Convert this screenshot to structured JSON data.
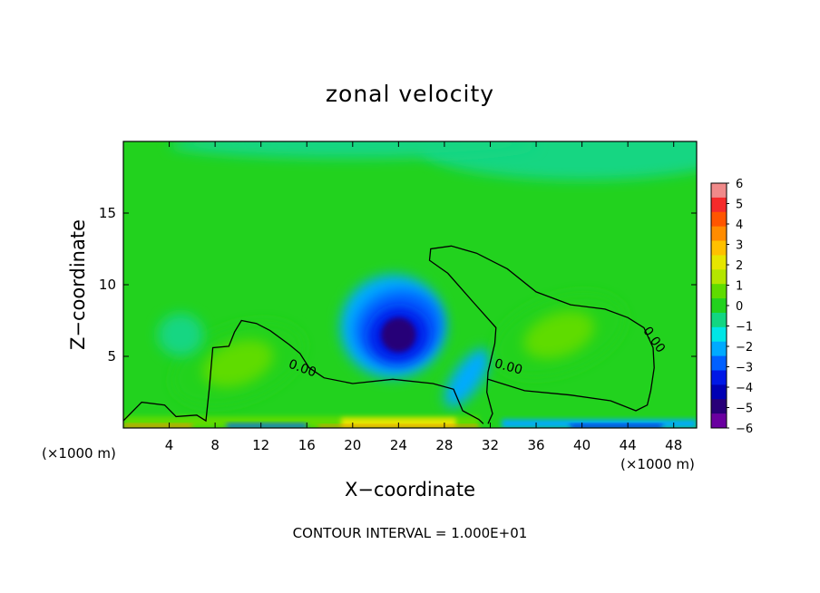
{
  "chart_data": {
    "type": "heatmap",
    "title": "zonal velocity",
    "xlabel": "X−coordinate",
    "ylabel": "Z−coordinate",
    "x_unit_left": "(×1000 m)",
    "x_unit_right": "(×1000 m)",
    "xlim": [
      0,
      50
    ],
    "ylim": [
      0,
      20
    ],
    "x_ticks": [
      4,
      8,
      12,
      16,
      20,
      24,
      28,
      32,
      36,
      40,
      44,
      48
    ],
    "y_ticks": [
      5,
      10,
      15
    ],
    "contour_label": "0.00",
    "footer": "CONTOUR INTERVAL = 1.000E+01",
    "colorbar": {
      "labels": [
        "6",
        "5",
        "4",
        "3",
        "2",
        "1",
        "0",
        "−1",
        "−2",
        "−3",
        "−4",
        "−5",
        "−6"
      ],
      "colors": [
        "#f08a8a",
        "#f52a2a",
        "#ff5500",
        "#ff8c00",
        "#ffc000",
        "#e6e600",
        "#b4e600",
        "#5fdc00",
        "#22d21e",
        "#12d682",
        "#00e6e6",
        "#00aaff",
        "#0060ff",
        "#0018e6",
        "#0000b4",
        "#280078",
        "#6a00a0"
      ]
    },
    "features": [
      {
        "kind": "min",
        "x": 24,
        "z": 6.5,
        "value": -5
      },
      {
        "kind": "min",
        "x": 30,
        "z": 3.5,
        "value": -2
      },
      {
        "kind": "max",
        "x": 38,
        "z": 6.5,
        "value": 1
      },
      {
        "kind": "max",
        "x": 10,
        "z": 4.5,
        "value": 1
      },
      {
        "kind": "min",
        "x": 5,
        "z": 6.5,
        "value": -1
      }
    ],
    "zero_contours": [
      [
        [
          0,
          0.5
        ],
        [
          1.6,
          1.8
        ],
        [
          3.6,
          1.6
        ],
        [
          4.6,
          0.8
        ],
        [
          6.4,
          0.9
        ],
        [
          7.2,
          0.5
        ],
        [
          7.5,
          2.8
        ],
        [
          7.8,
          5.6
        ],
        [
          9.2,
          5.7
        ],
        [
          9.7,
          6.7
        ],
        [
          10.3,
          7.5
        ],
        [
          11.6,
          7.3
        ],
        [
          12.8,
          6.8
        ],
        [
          14.5,
          5.8
        ],
        [
          15.4,
          5.2
        ],
        [
          16.2,
          4.2
        ],
        [
          17.5,
          3.5
        ],
        [
          20.0,
          3.1
        ],
        [
          23.5,
          3.4
        ],
        [
          27.0,
          3.1
        ],
        [
          28.8,
          2.7
        ],
        [
          29.6,
          1.2
        ],
        [
          31.0,
          0.6
        ],
        [
          31.4,
          0.3
        ]
      ],
      [
        [
          31.8,
          0.3
        ],
        [
          32.2,
          1.0
        ],
        [
          31.7,
          2.5
        ],
        [
          31.8,
          3.9
        ],
        [
          32.4,
          5.9
        ],
        [
          32.5,
          7.0
        ],
        [
          30.5,
          8.8
        ],
        [
          28.3,
          10.8
        ],
        [
          26.7,
          11.7
        ],
        [
          26.8,
          12.5
        ],
        [
          28.6,
          12.7
        ],
        [
          30.8,
          12.2
        ],
        [
          33.5,
          11.1
        ],
        [
          36.0,
          9.5
        ],
        [
          39.0,
          8.6
        ],
        [
          42.0,
          8.3
        ],
        [
          44.0,
          7.7
        ],
        [
          45.4,
          7.0
        ],
        [
          46.2,
          5.6
        ],
        [
          46.3,
          4.2
        ],
        [
          46.0,
          2.6
        ],
        [
          45.7,
          1.6
        ],
        [
          44.7,
          1.2
        ],
        [
          42.5,
          1.9
        ],
        [
          39.0,
          2.3
        ],
        [
          35.0,
          2.6
        ],
        [
          31.8,
          3.4
        ]
      ]
    ]
  }
}
